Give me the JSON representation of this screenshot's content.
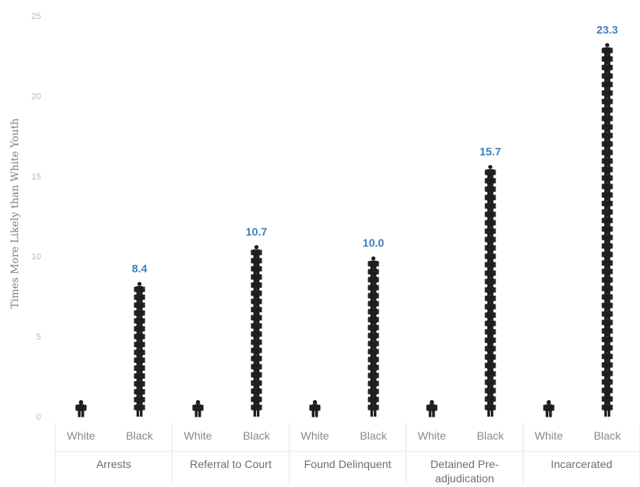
{
  "chart_data": {
    "type": "bar",
    "ylabel": "Times More Likely than White Youth",
    "ylim": [
      0,
      25
    ],
    "yticks": [
      "0",
      "5",
      "10",
      "15",
      "20",
      "25"
    ],
    "grid": false,
    "mark": "stacked person icons",
    "icon": "person-icon",
    "colors": {
      "icon": "#1f1f1f",
      "data_label": "#3d7fc1"
    },
    "categories": [
      "Arrests",
      "Referral to Court",
      "Found Delinquent",
      "Detained Pre-adjudication",
      "Incarcerated"
    ],
    "series": [
      {
        "name": "White",
        "values": [
          1,
          1,
          1,
          1,
          1
        ]
      },
      {
        "name": "Black",
        "values": [
          8.4,
          10.7,
          10.0,
          15.7,
          23.3
        ]
      }
    ],
    "data_labels": [
      "8.4",
      "10.7",
      "10.0",
      "15.7",
      "23.3"
    ],
    "race_labels": [
      "White",
      "Black"
    ],
    "group_labels": [
      [
        "Arrests"
      ],
      [
        "Referral to Court"
      ],
      [
        "Found  Delinquent"
      ],
      [
        "Detained Pre-",
        "adjudication"
      ],
      [
        "Incarcerated"
      ]
    ]
  }
}
